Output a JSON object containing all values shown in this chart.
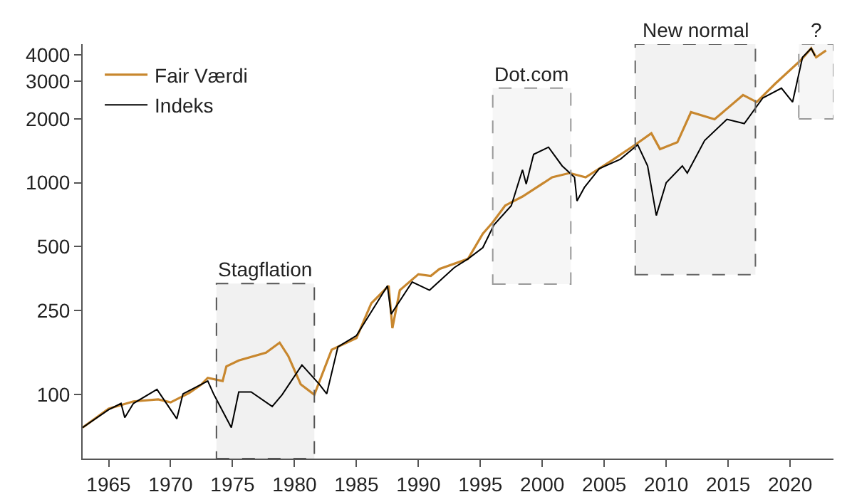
{
  "chart_data": {
    "type": "line",
    "log": "y",
    "grid": false,
    "legend": "top left",
    "marker": "none",
    "line_style": "solid",
    "xlim": [
      1962.9,
      2023.5
    ],
    "xticks": [
      1965,
      1970,
      1975,
      1980,
      1985,
      1990,
      1995,
      2000,
      2005,
      2010,
      2015,
      2020
    ],
    "ylim": [
      50,
      4500
    ],
    "yticks": [
      100,
      250,
      500,
      1000,
      2000,
      3000,
      4000
    ],
    "series": [
      {
        "name": "Fair Værdi",
        "color": "#c8872e",
        "x": [
          1962.9,
          1965,
          1967,
          1969,
          1970,
          1971.5,
          1972.5,
          1973,
          1974.2,
          1974.5,
          1975.5,
          1977.7,
          1978.8,
          1979.5,
          1980.5,
          1981.6,
          1983,
          1985,
          1986.2,
          1987.6,
          1987.9,
          1988.5,
          1990,
          1991,
          1991.7,
          1994,
          1995.2,
          1996,
          1997,
          1998.4,
          2000.8,
          2002.2,
          2003.5,
          2005.5,
          2007.5,
          2008.8,
          2009.5,
          2010.9,
          2012,
          2013.9,
          2016.2,
          2017.3,
          2018.8,
          2020.9,
          2021.7,
          2022.1,
          2022.9
        ],
        "values": [
          70,
          86,
          93,
          95,
          92,
          102,
          112,
          120,
          116,
          136,
          145,
          158,
          176,
          152,
          112,
          100,
          163,
          185,
          270,
          326,
          206,
          311,
          370,
          363,
          392,
          437,
          575,
          650,
          780,
          860,
          1060,
          1110,
          1060,
          1260,
          1510,
          1710,
          1440,
          1550,
          2150,
          1990,
          2590,
          2400,
          2930,
          3800,
          4300,
          3900,
          4200
        ]
      },
      {
        "name": "Indeks",
        "color": "#000000",
        "x": [
          1962.9,
          1965,
          1966,
          1966.3,
          1967,
          1968.9,
          1970.5,
          1971,
          1973,
          1973.5,
          1974.9,
          1975.5,
          1976.5,
          1978.2,
          1979,
          1980.6,
          1982,
          1982.6,
          1983.5,
          1985,
          1987.5,
          1987.8,
          1989.5,
          1990.9,
          1992.9,
          1994,
          1995.2,
          1996.1,
          1997.5,
          1998.4,
          1998.7,
          1999.3,
          2000.5,
          2001.6,
          2002.6,
          2002.8,
          2003.4,
          2004.6,
          2006.3,
          2007.7,
          2008.5,
          2009.2,
          2010,
          2011.3,
          2011.7,
          2013.1,
          2014.9,
          2016.3,
          2017.8,
          2019.3,
          2020.2,
          2021,
          2021.7,
          2022
        ],
        "values": [
          70,
          85,
          91,
          78,
          91,
          106,
          77,
          101,
          116,
          100,
          70,
          103,
          103,
          88,
          100,
          138,
          112,
          101,
          168,
          190,
          326,
          240,
          340,
          311,
          398,
          437,
          494,
          632,
          780,
          1150,
          985,
          1360,
          1470,
          1200,
          1060,
          820,
          950,
          1165,
          1290,
          1510,
          1200,
          700,
          1000,
          1200,
          1110,
          1580,
          1990,
          1900,
          2510,
          2790,
          2400,
          3900,
          4300,
          3970
        ]
      }
    ],
    "bands": [
      {
        "axis": "x",
        "from": 1973.7,
        "to": 1981.6,
        "color": "#555555",
        "label": "Stagflation"
      },
      {
        "axis": "x",
        "from": 1996.0,
        "to": 2002.3,
        "color": "#999999",
        "label": "Dot.com"
      },
      {
        "axis": "x",
        "from": 2007.5,
        "to": 2017.2,
        "color": "#666666",
        "label": "New normal"
      },
      {
        "axis": "x",
        "from": 2020.7,
        "to": 2023.5,
        "color": "#999999",
        "label": "?"
      }
    ]
  }
}
